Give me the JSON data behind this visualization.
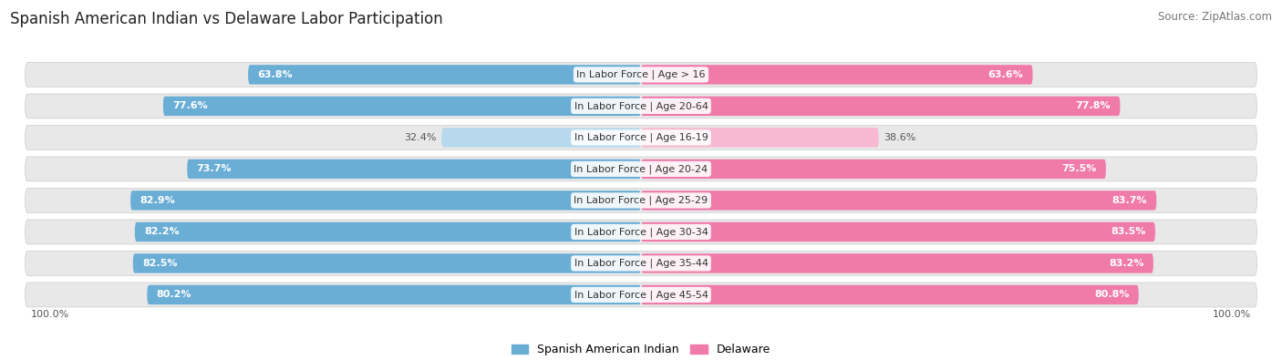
{
  "title": "Spanish American Indian vs Delaware Labor Participation",
  "source": "Source: ZipAtlas.com",
  "categories": [
    "In Labor Force | Age > 16",
    "In Labor Force | Age 20-64",
    "In Labor Force | Age 16-19",
    "In Labor Force | Age 20-24",
    "In Labor Force | Age 25-29",
    "In Labor Force | Age 30-34",
    "In Labor Force | Age 35-44",
    "In Labor Force | Age 45-54"
  ],
  "spanish_values": [
    63.8,
    77.6,
    32.4,
    73.7,
    82.9,
    82.2,
    82.5,
    80.2
  ],
  "delaware_values": [
    63.6,
    77.8,
    38.6,
    75.5,
    83.7,
    83.5,
    83.2,
    80.8
  ],
  "max_value": 100.0,
  "spanish_color": "#6aaed6",
  "spanish_color_light": "#b8d8ed",
  "delaware_color": "#f07aaa",
  "delaware_color_light": "#f7b8d2",
  "row_bg_color": "#e8e8e8",
  "legend_spanish": "Spanish American Indian",
  "legend_delaware": "Delaware",
  "title_fontsize": 12,
  "source_fontsize": 8.5,
  "label_fontsize": 8,
  "value_fontsize": 8,
  "axis_label_fontsize": 8
}
